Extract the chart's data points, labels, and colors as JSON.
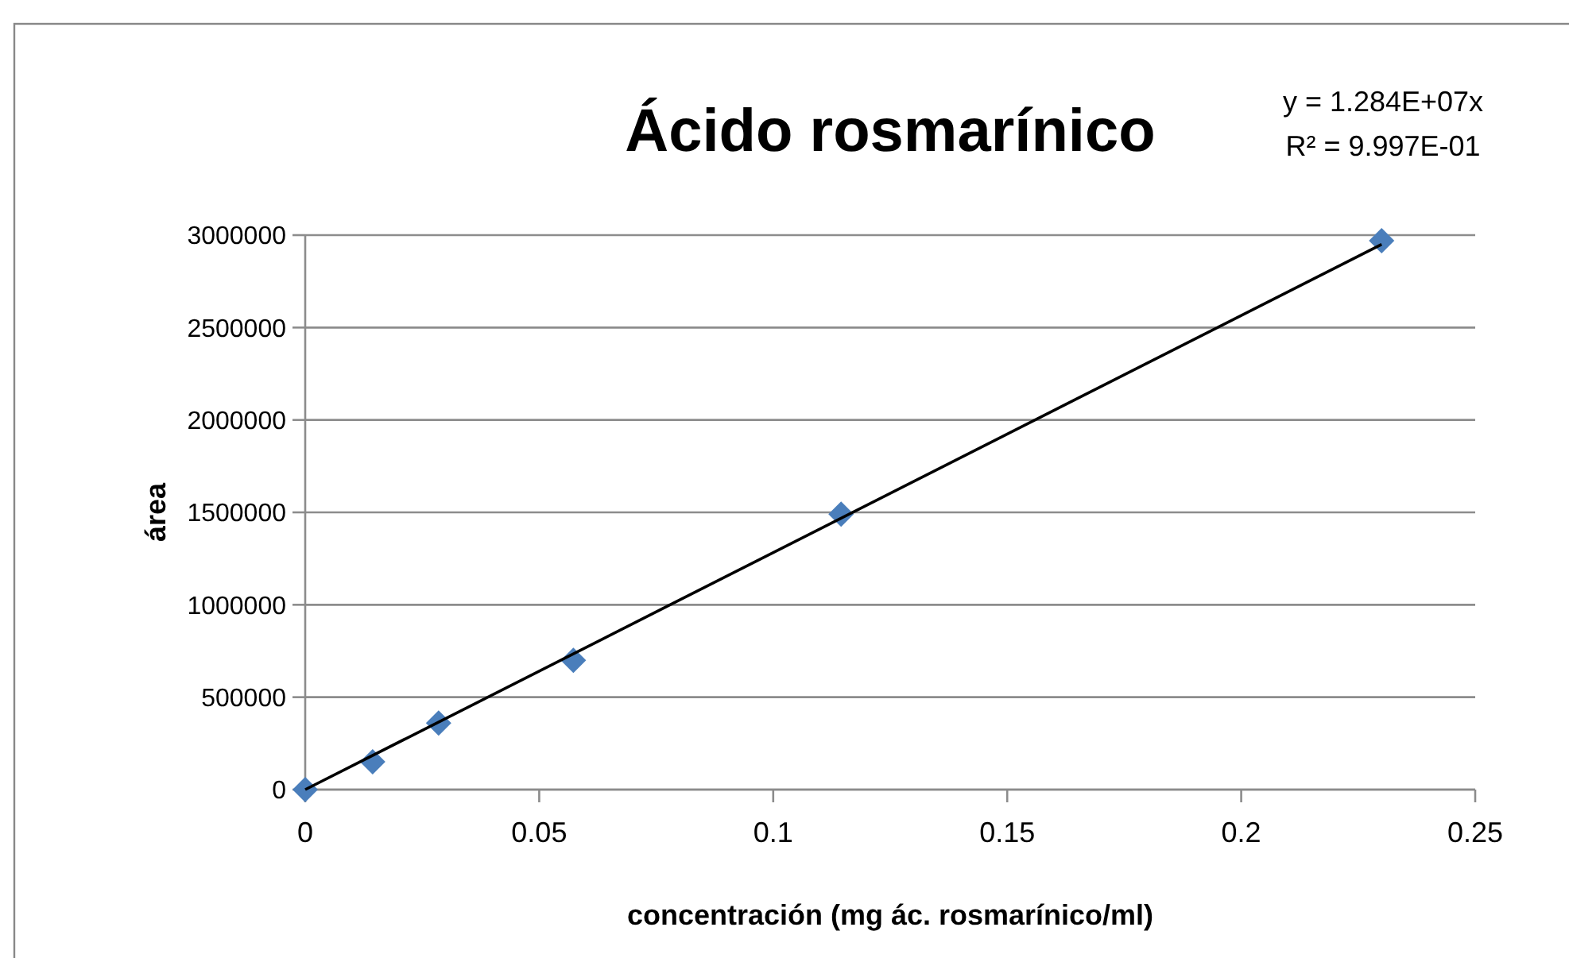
{
  "chart_data": {
    "type": "scatter",
    "title": "Ácido rosmarínico",
    "xlabel": "concentración (mg ác. rosmarínico/ml)",
    "ylabel": "área",
    "annotations": [
      "y = 1.284E+07x",
      "R² = 9.997E-01"
    ],
    "series": [
      {
        "type": "scatter",
        "color": "#4a7ebb",
        "marker": "diamond",
        "x": [
          0,
          0.0144,
          0.0285,
          0.0573,
          0.1145,
          0.23
        ],
        "values": [
          0,
          150000,
          360000,
          700000,
          1490000,
          2970000
        ]
      },
      {
        "type": "line",
        "color": "#000000",
        "marker": "none",
        "x": [
          0,
          0.23
        ],
        "values": [
          0,
          2950000
        ]
      }
    ],
    "xlim": [
      0,
      0.25
    ],
    "xticks": [
      0,
      0.05,
      0.1,
      0.15,
      0.2,
      0.25
    ],
    "ylim": [
      0,
      3000000
    ],
    "yticks": [
      0,
      500000,
      1000000,
      1500000,
      2000000,
      2500000,
      3000000
    ],
    "grid": "y"
  }
}
